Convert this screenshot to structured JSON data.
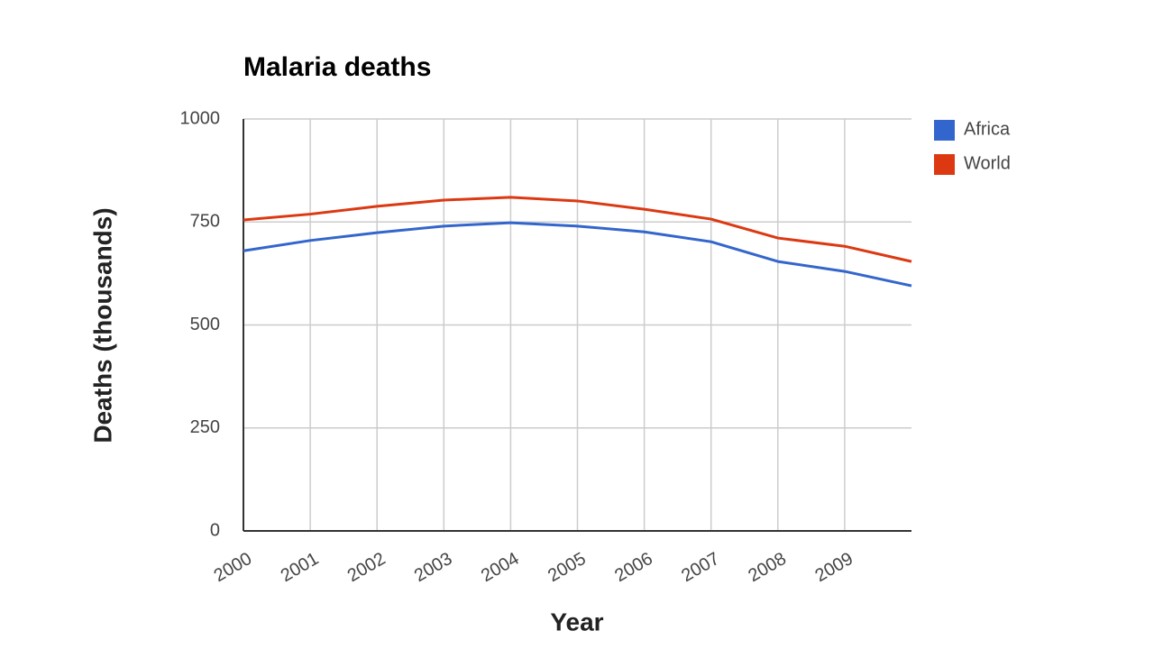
{
  "chart_data": {
    "type": "line",
    "title": "Malaria deaths",
    "x_label": "Year",
    "y_label": "Deaths (thousands)",
    "x": [
      2000,
      2001,
      2002,
      2003,
      2004,
      2005,
      2006,
      2007,
      2008,
      2009,
      2010
    ],
    "series": [
      {
        "name": "Africa",
        "color": "#3366cc",
        "values": [
          680,
          705,
          724,
          740,
          748,
          740,
          726,
          702,
          654,
          630,
          595
        ]
      },
      {
        "name": "World",
        "color": "#dc3912",
        "values": [
          755,
          769,
          788,
          803,
          810,
          801,
          781,
          757,
          711,
          691,
          654
        ]
      }
    ],
    "xlim": [
      2000,
      2010
    ],
    "xticks": [
      2000,
      2001,
      2002,
      2003,
      2004,
      2005,
      2006,
      2007,
      2008,
      2009
    ],
    "ylim": [
      0,
      1000
    ],
    "yticks": [
      0,
      250,
      500,
      750,
      1000
    ],
    "grid": true,
    "legend": "right"
  }
}
